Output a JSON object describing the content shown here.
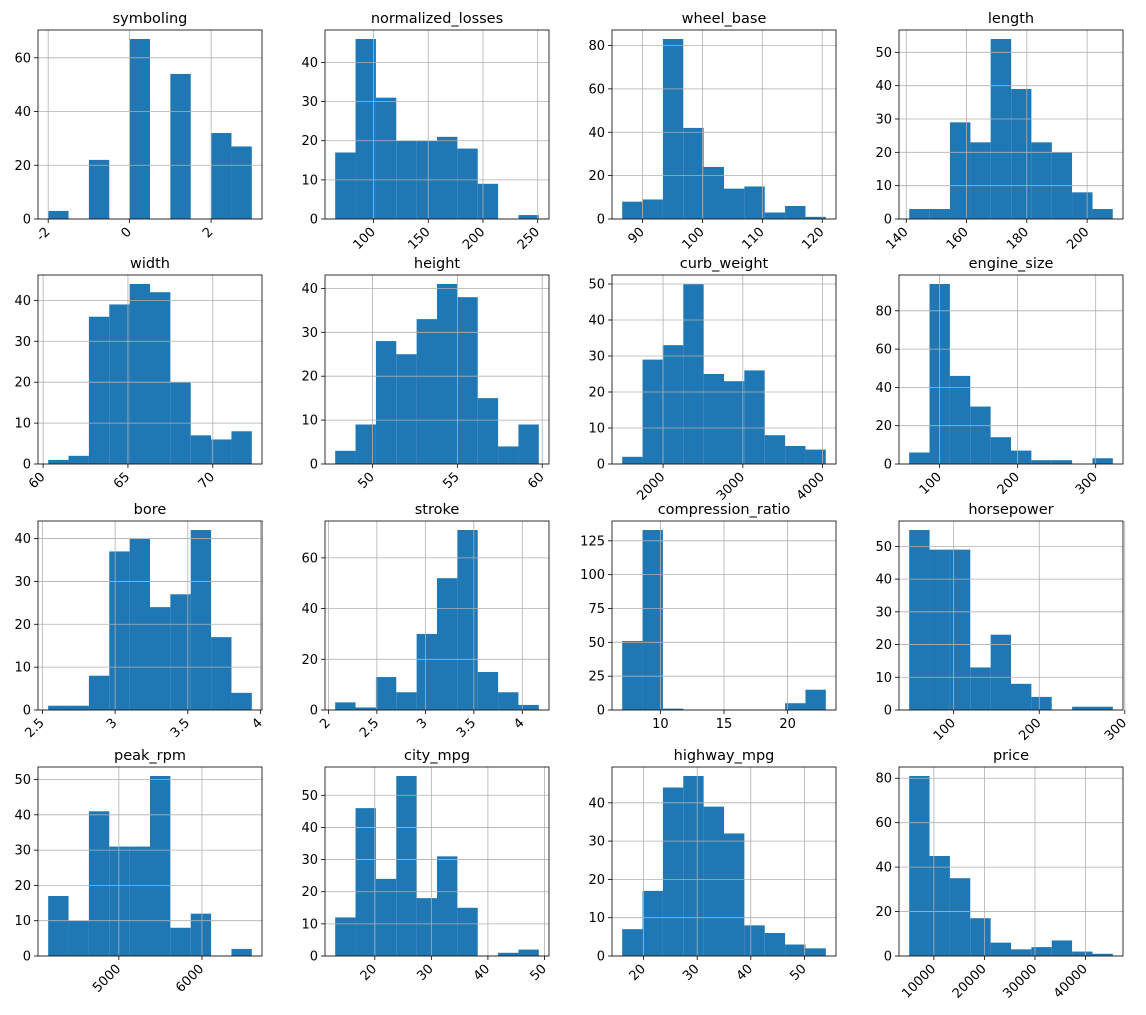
{
  "chart_data": [
    {
      "type": "bar",
      "title": "symboling",
      "edges": [
        -2,
        -1.5,
        -1,
        -0.5,
        0,
        0.5,
        1,
        1.5,
        2,
        2.5,
        3
      ],
      "counts": [
        3,
        0,
        22,
        0,
        67,
        0,
        54,
        0,
        32,
        27
      ],
      "xlim": [
        -2.25,
        3.25
      ],
      "ylim": [
        0,
        70.35
      ],
      "xticks": [
        -2,
        0,
        2
      ],
      "yticks": [
        0,
        20,
        40,
        60
      ],
      "xrot": -45
    },
    {
      "type": "bar",
      "title": "normalized_losses",
      "edges": [
        65,
        83.6,
        102.2,
        120.8,
        139.4,
        158,
        176.6,
        195.2,
        213.8,
        232.4,
        251
      ],
      "counts": [
        17,
        46,
        31,
        20,
        20,
        21,
        18,
        9,
        0,
        1
      ],
      "xlim": [
        55.7,
        260.3
      ],
      "ylim": [
        0,
        48.3
      ],
      "xticks": [
        100,
        150,
        200,
        250
      ],
      "yticks": [
        0,
        10,
        20,
        30,
        40
      ],
      "xrot": -45
    },
    {
      "type": "bar",
      "title": "wheel_base",
      "edges": [
        86.6,
        90,
        93.4,
        96.8,
        100.2,
        103.6,
        107,
        110.4,
        113.8,
        117.2,
        120.6
      ],
      "counts": [
        8,
        9,
        83,
        42,
        24,
        14,
        15,
        3,
        6,
        1
      ],
      "xlim": [
        84.9,
        122.3
      ],
      "ylim": [
        0,
        87.15
      ],
      "xticks": [
        90,
        100,
        110,
        120
      ],
      "yticks": [
        0,
        20,
        40,
        60,
        80
      ],
      "xrot": -45
    },
    {
      "type": "bar",
      "title": "length",
      "edges": [
        141,
        147.8,
        154.5,
        161.3,
        168,
        174.8,
        181.5,
        188.3,
        195,
        201.8,
        208.5
      ],
      "counts": [
        3,
        3,
        29,
        23,
        54,
        39,
        23,
        20,
        8,
        3
      ],
      "xlim": [
        137.6,
        211.9
      ],
      "ylim": [
        0,
        56.7
      ],
      "xticks": [
        140,
        160,
        180,
        200
      ],
      "yticks": [
        0,
        10,
        20,
        30,
        40,
        50
      ],
      "xrot": -45
    },
    {
      "type": "bar",
      "title": "width",
      "edges": [
        60.3,
        61.5,
        62.7,
        63.9,
        65.1,
        66.3,
        67.5,
        68.7,
        69.9,
        71.1,
        72.3
      ],
      "counts": [
        1,
        2,
        36,
        39,
        44,
        42,
        20,
        7,
        6,
        8
      ],
      "xlim": [
        59.7,
        72.9
      ],
      "ylim": [
        0,
        46.2
      ],
      "xticks": [
        60,
        65,
        70
      ],
      "yticks": [
        0,
        10,
        20,
        30,
        40
      ],
      "xrot": -45
    },
    {
      "type": "bar",
      "title": "height",
      "edges": [
        47.8,
        49,
        50.2,
        51.4,
        52.6,
        53.8,
        55,
        56.2,
        57.4,
        58.6,
        59.8
      ],
      "counts": [
        3,
        9,
        28,
        25,
        33,
        41,
        38,
        15,
        4,
        9
      ],
      "xlim": [
        47.2,
        60.4
      ],
      "ylim": [
        0,
        43.05
      ],
      "xticks": [
        50,
        55,
        60
      ],
      "yticks": [
        0,
        10,
        20,
        30,
        40
      ],
      "xrot": -45
    },
    {
      "type": "bar",
      "title": "curb_weight",
      "edges": [
        1488,
        1743,
        1998,
        2254,
        2509,
        2764,
        3019,
        3274,
        3530,
        3785,
        4040
      ],
      "counts": [
        2,
        29,
        33,
        50,
        25,
        23,
        26,
        8,
        5,
        4
      ],
      "xlim": [
        1360,
        4168
      ],
      "ylim": [
        0,
        52.5
      ],
      "xticks": [
        2000,
        3000,
        4000
      ],
      "yticks": [
        0,
        10,
        20,
        30,
        40,
        50
      ],
      "xrot": -45
    },
    {
      "type": "bar",
      "title": "engine_size",
      "edges": [
        61,
        87.1,
        113.2,
        139.3,
        165.4,
        191.5,
        217.6,
        243.7,
        269.8,
        295.9,
        322
      ],
      "counts": [
        6,
        94,
        46,
        30,
        14,
        7,
        2,
        2,
        0,
        3
      ],
      "xlim": [
        48,
        335
      ],
      "ylim": [
        0,
        98.7
      ],
      "xticks": [
        100,
        200,
        300
      ],
      "yticks": [
        0,
        20,
        40,
        60,
        80
      ],
      "xrot": -45
    },
    {
      "type": "bar",
      "title": "bore",
      "edges": [
        2.54,
        2.68,
        2.82,
        2.96,
        3.1,
        3.24,
        3.38,
        3.52,
        3.66,
        3.8,
        3.94
      ],
      "counts": [
        1,
        1,
        8,
        37,
        40,
        24,
        27,
        42,
        17,
        4
      ],
      "xlim": [
        2.47,
        4.01
      ],
      "ylim": [
        0,
        44.1
      ],
      "xticks": [
        2.5,
        3.0,
        3.5,
        4.0
      ],
      "yticks": [
        0,
        10,
        20,
        30,
        40
      ],
      "xrot": -45
    },
    {
      "type": "bar",
      "title": "stroke",
      "edges": [
        2.07,
        2.28,
        2.49,
        2.7,
        2.91,
        3.12,
        3.33,
        3.54,
        3.75,
        3.96,
        4.17
      ],
      "counts": [
        3,
        1,
        13,
        7,
        30,
        52,
        71,
        15,
        7,
        2
      ],
      "xlim": [
        1.965,
        4.275
      ],
      "ylim": [
        0,
        74.55
      ],
      "xticks": [
        2.0,
        2.5,
        3.0,
        3.5,
        4.0
      ],
      "yticks": [
        0,
        20,
        40,
        60
      ],
      "xrot": -45
    },
    {
      "type": "bar",
      "title": "compression_ratio",
      "edges": [
        7,
        8.6,
        10.2,
        11.8,
        13.4,
        15,
        16.6,
        18.2,
        19.8,
        21.4,
        23
      ],
      "counts": [
        51,
        133,
        1,
        0,
        0,
        0,
        0,
        0,
        5,
        15
      ],
      "xlim": [
        6.2,
        23.8
      ],
      "ylim": [
        0,
        139.65
      ],
      "xticks": [
        10,
        15,
        20
      ],
      "yticks": [
        0,
        25,
        50,
        75,
        100,
        125
      ],
      "xrot": 0
    },
    {
      "type": "bar",
      "title": "horsepower",
      "edges": [
        48,
        71.8,
        95.6,
        119.4,
        143.2,
        167,
        190.8,
        214.6,
        238.4,
        262.2,
        286
      ],
      "counts": [
        55,
        49,
        49,
        13,
        23,
        8,
        4,
        0,
        1,
        1
      ],
      "xlim": [
        36.1,
        297.9
      ],
      "ylim": [
        0,
        57.75
      ],
      "xticks": [
        100,
        200,
        300
      ],
      "yticks": [
        0,
        10,
        20,
        30,
        40,
        50
      ],
      "xrot": -45
    },
    {
      "type": "bar",
      "title": "peak_rpm",
      "edges": [
        4150,
        4395,
        4640,
        4885,
        5130,
        5375,
        5620,
        5865,
        6110,
        6355,
        6600
      ],
      "counts": [
        17,
        10,
        41,
        31,
        31,
        51,
        8,
        12,
        0,
        2
      ],
      "xlim": [
        4027.5,
        6722.5
      ],
      "ylim": [
        0,
        53.55
      ],
      "xticks": [
        5000,
        6000
      ],
      "yticks": [
        0,
        10,
        20,
        30,
        40,
        50
      ],
      "xrot": -45
    },
    {
      "type": "bar",
      "title": "city_mpg",
      "edges": [
        13,
        16.6,
        20.2,
        23.8,
        27.4,
        31,
        34.6,
        38.2,
        41.8,
        45.4,
        49
      ],
      "counts": [
        12,
        46,
        24,
        56,
        18,
        31,
        15,
        0,
        1,
        2
      ],
      "xlim": [
        11.2,
        50.8
      ],
      "ylim": [
        0,
        58.8
      ],
      "xticks": [
        20,
        30,
        40,
        50
      ],
      "yticks": [
        0,
        10,
        20,
        30,
        40,
        50
      ],
      "xrot": -45
    },
    {
      "type": "bar",
      "title": "highway_mpg",
      "edges": [
        16,
        19.8,
        23.6,
        27.4,
        31.2,
        35,
        38.8,
        42.6,
        46.4,
        50.2,
        54
      ],
      "counts": [
        7,
        17,
        44,
        47,
        39,
        32,
        8,
        6,
        3,
        2
      ],
      "xlim": [
        14.1,
        55.9
      ],
      "ylim": [
        0,
        49.35
      ],
      "xticks": [
        20,
        30,
        40,
        50
      ],
      "yticks": [
        0,
        10,
        20,
        30,
        40
      ],
      "xrot": -45
    },
    {
      "type": "bar",
      "title": "price",
      "edges": [
        5118,
        9146,
        13174,
        17202,
        21230,
        25258,
        29286,
        33314,
        37342,
        41370,
        45400
      ],
      "counts": [
        81,
        45,
        35,
        17,
        6,
        3,
        4,
        7,
        2,
        1
      ],
      "xlim": [
        3104,
        47414
      ],
      "ylim": [
        0,
        85.05
      ],
      "xticks": [
        10000,
        20000,
        30000,
        40000
      ],
      "yticks": [
        0,
        20,
        40,
        60,
        80
      ],
      "xrot": -45
    }
  ]
}
